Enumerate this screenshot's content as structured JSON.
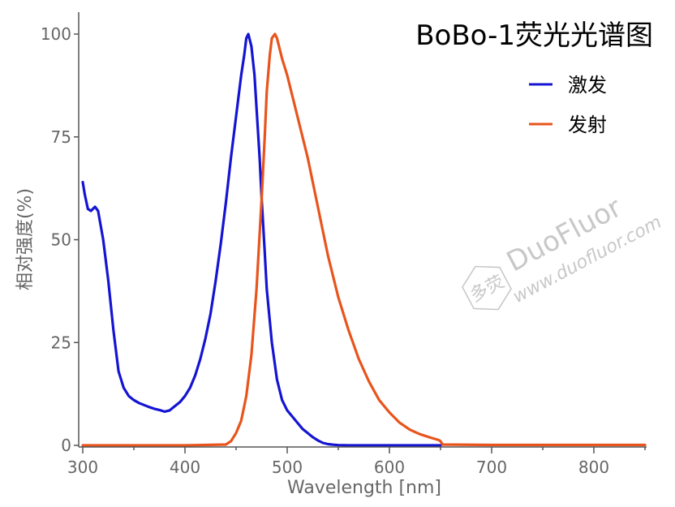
{
  "chart_data": {
    "type": "line",
    "title": "BoBo-1荧光光谱图",
    "xlabel": "Wavelength [nm]",
    "ylabel": "相对强度(%)",
    "xlim": [
      300,
      850
    ],
    "ylim": [
      0,
      100
    ],
    "xticks": [
      "300",
      "400",
      "500",
      "600",
      "700",
      "800"
    ],
    "yticks": [
      "0",
      "25",
      "50",
      "75",
      "100"
    ],
    "grid": false,
    "legend_position": "top-right",
    "series": [
      {
        "name": "激发",
        "color": "#1414d2",
        "x": [
          300,
          302,
          305,
          308,
          312,
          315,
          320,
          325,
          330,
          335,
          340,
          345,
          350,
          355,
          360,
          365,
          370,
          375,
          380,
          385,
          390,
          395,
          400,
          405,
          410,
          415,
          420,
          425,
          430,
          435,
          440,
          445,
          450,
          455,
          458,
          460,
          462,
          465,
          468,
          470,
          473,
          475,
          478,
          480,
          485,
          490,
          495,
          500,
          505,
          510,
          515,
          520,
          525,
          530,
          535,
          540,
          545,
          550,
          560,
          580,
          600,
          620,
          650
        ],
        "y": [
          64,
          61,
          57.5,
          57,
          58,
          57,
          50,
          40,
          28,
          18,
          14,
          12,
          11,
          10.3,
          9.8,
          9.3,
          8.9,
          8.6,
          8.2,
          8.5,
          9.5,
          10.5,
          12,
          14,
          17,
          21,
          26,
          32,
          40,
          49,
          59,
          70,
          80,
          90,
          95,
          99,
          100,
          97,
          90,
          82,
          70,
          60,
          47,
          38,
          25,
          16,
          11,
          8.5,
          7,
          5.5,
          4,
          3,
          2,
          1.2,
          0.6,
          0.3,
          0.15,
          0.05,
          0,
          0,
          0,
          0,
          0
        ]
      },
      {
        "name": "发射",
        "color": "#e8541c",
        "x": [
          300,
          400,
          440,
          445,
          450,
          455,
          460,
          465,
          470,
          475,
          478,
          480,
          483,
          485,
          488,
          490,
          493,
          495,
          500,
          505,
          510,
          515,
          520,
          525,
          530,
          535,
          540,
          545,
          550,
          560,
          570,
          580,
          590,
          600,
          610,
          620,
          630,
          640,
          648,
          650,
          652,
          700,
          750,
          800,
          850
        ],
        "y": [
          0,
          0,
          0.2,
          1,
          3,
          6,
          12,
          22,
          38,
          60,
          75,
          86,
          95,
          99,
          100,
          99,
          96,
          94,
          90,
          85,
          80,
          75,
          70,
          64,
          58,
          52,
          46,
          41,
          36,
          28,
          21,
          15.5,
          11,
          8,
          5.5,
          3.8,
          2.7,
          1.9,
          1.3,
          1,
          0.2,
          0.1,
          0.1,
          0.1,
          0.1
        ]
      }
    ]
  },
  "watermark": {
    "logo_text": "多荧",
    "brand": "DuoFluor",
    "url": "www.duofluor.com"
  }
}
